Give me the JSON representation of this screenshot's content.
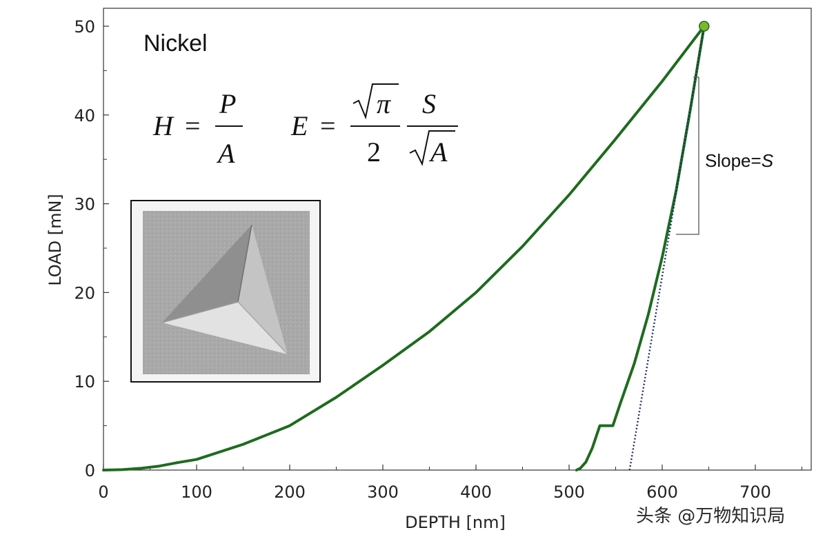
{
  "chart_data": {
    "type": "line",
    "xlabel": "DEPTH [nm]",
    "ylabel": "LOAD [mN]",
    "xlim": [
      0,
      760
    ],
    "ylim": [
      0,
      50
    ],
    "x_ticks": [
      0,
      100,
      200,
      300,
      400,
      500,
      600,
      700
    ],
    "y_ticks": [
      0,
      10,
      20,
      30,
      40,
      50
    ],
    "grid": false,
    "sample_label": "Nickel",
    "equations": [
      "H = P / A",
      "E = √π / 2 · S / √A"
    ],
    "slope_label_text": "Slope=",
    "slope_label_symbol": "S",
    "series": [
      {
        "role": "loading",
        "x": [
          0,
          20,
          40,
          60,
          80,
          100,
          150,
          200,
          250,
          300,
          350,
          400,
          450,
          500,
          550,
          600,
          645
        ],
        "y": [
          0,
          0.05,
          0.2,
          0.45,
          0.85,
          1.2,
          2.9,
          5.0,
          8.2,
          11.8,
          15.6,
          20.0,
          25.2,
          31.0,
          37.3,
          43.8,
          50.0
        ]
      },
      {
        "role": "unloading",
        "x": [
          645,
          630,
          615,
          600,
          585,
          570,
          555,
          547,
          540,
          533,
          525,
          518,
          512,
          508
        ],
        "y": [
          50.0,
          40.5,
          31.5,
          24.0,
          17.5,
          12.0,
          7.5,
          5.0,
          5.0,
          5.0,
          2.5,
          0.9,
          0.2,
          0
        ],
        "note": "pop-in plateau near 5 mN"
      },
      {
        "role": "tangent",
        "style": "dotted",
        "x": [
          565,
          645
        ],
        "y": [
          0,
          50
        ]
      }
    ],
    "max_point": {
      "x": 645,
      "y": 50
    }
  },
  "colors": {
    "curve": "#1e6b1e",
    "marker": "#7cb82f",
    "tangent": "#1c2a6b",
    "axis": "#333333"
  },
  "watermark": "头条 @万物知识局"
}
